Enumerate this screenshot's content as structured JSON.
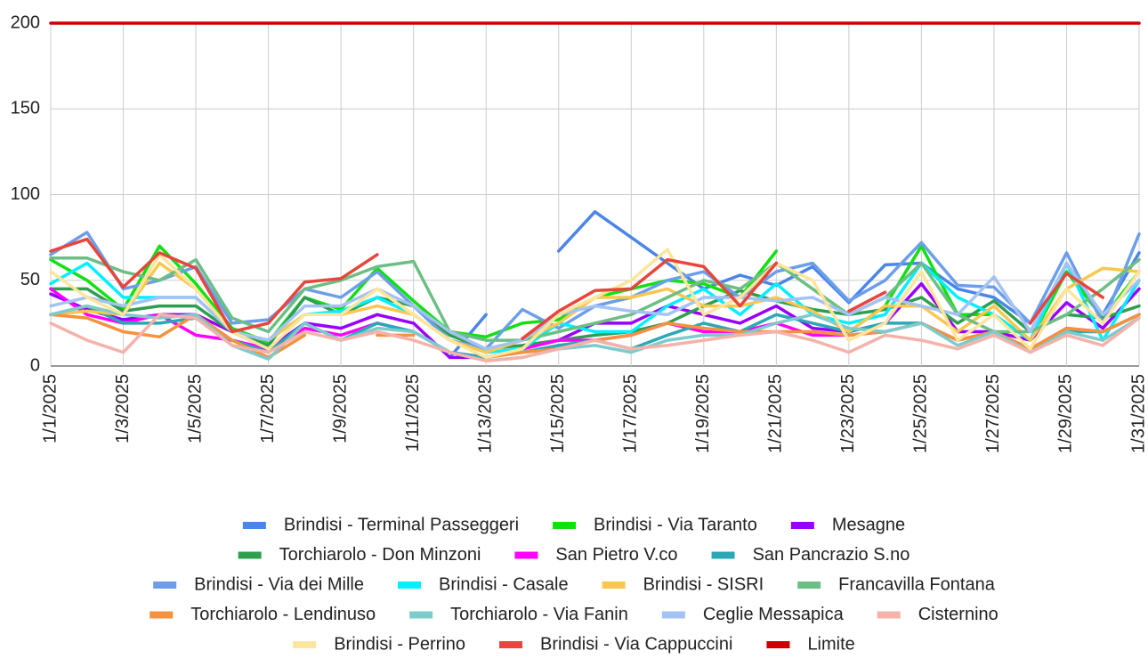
{
  "chart_data": {
    "type": "line",
    "categories": [
      "1/1/2025",
      null,
      "1/3/2025",
      null,
      "1/5/2025",
      null,
      "1/7/2025",
      null,
      "1/9/2025",
      null,
      "1/11/2025",
      null,
      "1/13/2025",
      null,
      "1/15/2025",
      null,
      "1/17/2025",
      null,
      "1/19/2025",
      null,
      "1/21/2025",
      null,
      "1/23/2025",
      null,
      "1/25/2025",
      null,
      "1/27/2025",
      null,
      "1/29/2025",
      null,
      "1/31/2025"
    ],
    "ylim": [
      0,
      200
    ],
    "yticks": [
      0,
      50,
      100,
      150,
      200
    ],
    "grid": true,
    "legend": "bottom",
    "series": [
      {
        "name": "Brindisi - Terminal Passeggeri",
        "color": "#4a86e8",
        "values": [
          null,
          null,
          null,
          null,
          null,
          null,
          null,
          null,
          null,
          null,
          null,
          5,
          30,
          null,
          67,
          90,
          75,
          60,
          45,
          53,
          47,
          58,
          37,
          59,
          60,
          45,
          40,
          25,
          55,
          30,
          66
        ]
      },
      {
        "name": "Brindisi - Via Taranto",
        "color": "#11e011",
        "values": [
          62,
          50,
          33,
          70,
          48,
          22,
          14,
          40,
          33,
          57,
          38,
          20,
          17,
          25,
          27,
          40,
          45,
          50,
          48,
          40,
          67,
          null,
          20,
          35,
          70,
          30,
          30,
          15,
          55,
          28,
          55
        ]
      },
      {
        "name": "Mesagne",
        "color": "#9900ff",
        "values": [
          42,
          33,
          27,
          30,
          30,
          20,
          10,
          25,
          22,
          30,
          25,
          5,
          5,
          10,
          15,
          25,
          25,
          35,
          30,
          25,
          35,
          22,
          20,
          25,
          48,
          20,
          20,
          15,
          37,
          22,
          45
        ]
      },
      {
        "name": "Torchiarolo - Don Minzoni",
        "color": "#2e9e4f",
        "values": [
          45,
          45,
          32,
          35,
          35,
          20,
          12,
          40,
          30,
          40,
          35,
          18,
          10,
          12,
          15,
          18,
          20,
          25,
          35,
          44,
          38,
          33,
          30,
          33,
          40,
          25,
          38,
          20,
          30,
          28,
          35
        ]
      },
      {
        "name": "San Pietro V.co",
        "color": "#ff00ff",
        "values": [
          45,
          30,
          25,
          30,
          18,
          15,
          10,
          22,
          18,
          25,
          20,
          8,
          5,
          10,
          15,
          15,
          18,
          25,
          20,
          20,
          25,
          18,
          18,
          20,
          25,
          15,
          20,
          10,
          22,
          20,
          30
        ]
      },
      {
        "name": "San Pancrazio S.no",
        "color": "#2aa8b5",
        "values": [
          30,
          35,
          25,
          25,
          28,
          15,
          8,
          25,
          15,
          25,
          20,
          8,
          5,
          8,
          12,
          15,
          10,
          18,
          25,
          20,
          30,
          25,
          20,
          25,
          25,
          15,
          20,
          10,
          20,
          20,
          30
        ]
      },
      {
        "name": "Brindisi - Via dei Mille",
        "color": "#6d9eeb",
        "values": [
          65,
          78,
          45,
          50,
          58,
          25,
          27,
          45,
          40,
          55,
          35,
          15,
          10,
          33,
          22,
          35,
          40,
          50,
          55,
          40,
          55,
          60,
          38,
          50,
          72,
          47,
          46,
          25,
          66,
          25,
          77
        ]
      },
      {
        "name": "Brindisi - Casale",
        "color": "#00f0ff",
        "values": [
          48,
          60,
          40,
          40,
          40,
          20,
          15,
          30,
          32,
          40,
          30,
          15,
          8,
          10,
          25,
          20,
          20,
          35,
          45,
          30,
          48,
          30,
          25,
          30,
          60,
          40,
          30,
          15,
          60,
          15,
          50
        ]
      },
      {
        "name": "Brindisi - SISRI",
        "color": "#f9c74f",
        "values": [
          30,
          32,
          30,
          60,
          45,
          20,
          15,
          30,
          30,
          35,
          30,
          15,
          8,
          15,
          25,
          40,
          40,
          45,
          35,
          35,
          40,
          32,
          20,
          35,
          35,
          20,
          35,
          15,
          45,
          57,
          55
        ]
      },
      {
        "name": "Francavilla Fontana",
        "color": "#6cbf84",
        "values": [
          63,
          63,
          55,
          50,
          62,
          28,
          20,
          45,
          50,
          58,
          61,
          20,
          15,
          15,
          20,
          25,
          30,
          40,
          50,
          45,
          60,
          45,
          30,
          40,
          60,
          30,
          20,
          20,
          30,
          45,
          62
        ]
      },
      {
        "name": "Torchiarolo - Lendinuso",
        "color": "#f6913e",
        "values": [
          30,
          28,
          20,
          17,
          30,
          15,
          5,
          18,
          null,
          18,
          18,
          null,
          5,
          8,
          10,
          15,
          18,
          25,
          22,
          20,
          20,
          20,
          18,
          20,
          25,
          15,
          20,
          10,
          22,
          20,
          30
        ]
      },
      {
        "name": "Torchiarolo - Via Fanin",
        "color": "#7ecbcb",
        "values": [
          30,
          35,
          30,
          28,
          30,
          12,
          4,
          25,
          15,
          22,
          20,
          8,
          3,
          5,
          10,
          12,
          8,
          15,
          18,
          18,
          25,
          30,
          22,
          20,
          25,
          12,
          20,
          8,
          20,
          15,
          28
        ]
      },
      {
        "name": "Ceglie Messapica",
        "color": "#a4c2f4",
        "values": [
          35,
          40,
          35,
          40,
          40,
          20,
          15,
          35,
          35,
          45,
          35,
          20,
          10,
          15,
          30,
          35,
          32,
          30,
          40,
          40,
          38,
          40,
          30,
          40,
          35,
          30,
          52,
          20,
          60,
          30,
          50
        ]
      },
      {
        "name": "Cisternino",
        "color": "#f4b2aa",
        "values": [
          25,
          15,
          8,
          30,
          28,
          12,
          8,
          20,
          15,
          20,
          15,
          8,
          3,
          5,
          10,
          15,
          10,
          12,
          15,
          18,
          20,
          15,
          8,
          18,
          15,
          10,
          18,
          8,
          18,
          12,
          28
        ]
      },
      {
        "name": "Brindisi - Perrino",
        "color": "#fde59b",
        "values": [
          55,
          40,
          30,
          65,
          45,
          20,
          10,
          30,
          30,
          45,
          30,
          15,
          5,
          10,
          30,
          40,
          50,
          68,
          30,
          40,
          60,
          50,
          15,
          25,
          55,
          15,
          30,
          10,
          45,
          25,
          55
        ]
      },
      {
        "name": "Brindisi - Via Cappuccini",
        "color": "#e8453c",
        "values": [
          67,
          74,
          46,
          66,
          57,
          20,
          25,
          49,
          51,
          65,
          null,
          null,
          null,
          16,
          32,
          44,
          45,
          62,
          58,
          35,
          60,
          null,
          32,
          43,
          null,
          null,
          null,
          25,
          54,
          40,
          null
        ]
      },
      {
        "name": "Limite",
        "color": "#cc0000",
        "values": [
          200,
          200,
          200,
          200,
          200,
          200,
          200,
          200,
          200,
          200,
          200,
          200,
          200,
          200,
          200,
          200,
          200,
          200,
          200,
          200,
          200,
          200,
          200,
          200,
          200,
          200,
          200,
          200,
          200,
          200,
          200
        ]
      }
    ]
  }
}
